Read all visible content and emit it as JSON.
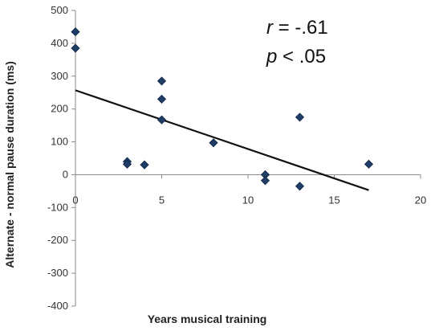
{
  "chart_data": {
    "type": "scatter",
    "title": "",
    "xlabel": "Years musical training",
    "ylabel": "Alternate - normal pause duration (ms)",
    "xlim": [
      0,
      20
    ],
    "ylim": [
      -400,
      500
    ],
    "x_ticks": [
      "0",
      "5",
      "10",
      "15",
      "20"
    ],
    "y_ticks": [
      "500",
      "400",
      "300",
      "200",
      "100",
      "0",
      "-100",
      "-200",
      "-300",
      "-400"
    ],
    "grid": false,
    "marker_color": "#1f3d66",
    "line_color": "#111111",
    "points": [
      {
        "x": 0,
        "y": 435
      },
      {
        "x": 0,
        "y": 385
      },
      {
        "x": 3,
        "y": 40
      },
      {
        "x": 3,
        "y": 32
      },
      {
        "x": 4,
        "y": 30
      },
      {
        "x": 5,
        "y": 285
      },
      {
        "x": 5,
        "y": 230
      },
      {
        "x": 5,
        "y": 167
      },
      {
        "x": 8,
        "y": 97
      },
      {
        "x": 11,
        "y": 0
      },
      {
        "x": 11,
        "y": -18
      },
      {
        "x": 13,
        "y": 175
      },
      {
        "x": 13,
        "y": -35
      },
      {
        "x": 17,
        "y": 32
      }
    ],
    "trendline": {
      "x1": 0,
      "y1": 257,
      "x2": 17,
      "y2": -47
    },
    "annotations": {
      "r_var": "r",
      "r_rest": " = -.61",
      "p_var": "p",
      "p_rest": " < .05"
    }
  }
}
